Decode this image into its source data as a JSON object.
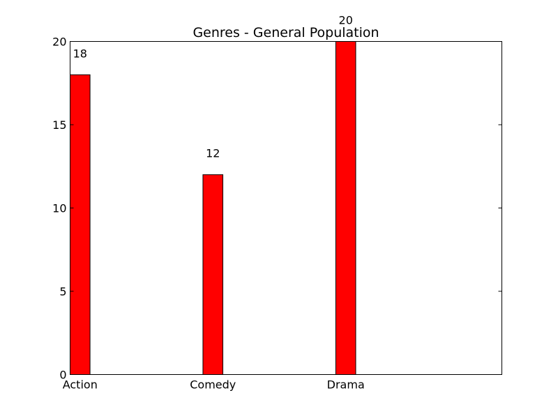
{
  "chart_data": {
    "type": "bar",
    "title": "Genres - General Population",
    "xlabel": "",
    "ylabel": "",
    "categories": [
      "Action",
      "Comedy",
      "Drama"
    ],
    "values": [
      18,
      12,
      20
    ],
    "ylim": [
      0,
      20
    ],
    "yticks": [
      "0",
      "5",
      "10",
      "15",
      "20"
    ],
    "data_labels": [
      "18",
      "12",
      "20"
    ],
    "bar_color": "#ff0000",
    "grid": false,
    "legend": "none"
  }
}
